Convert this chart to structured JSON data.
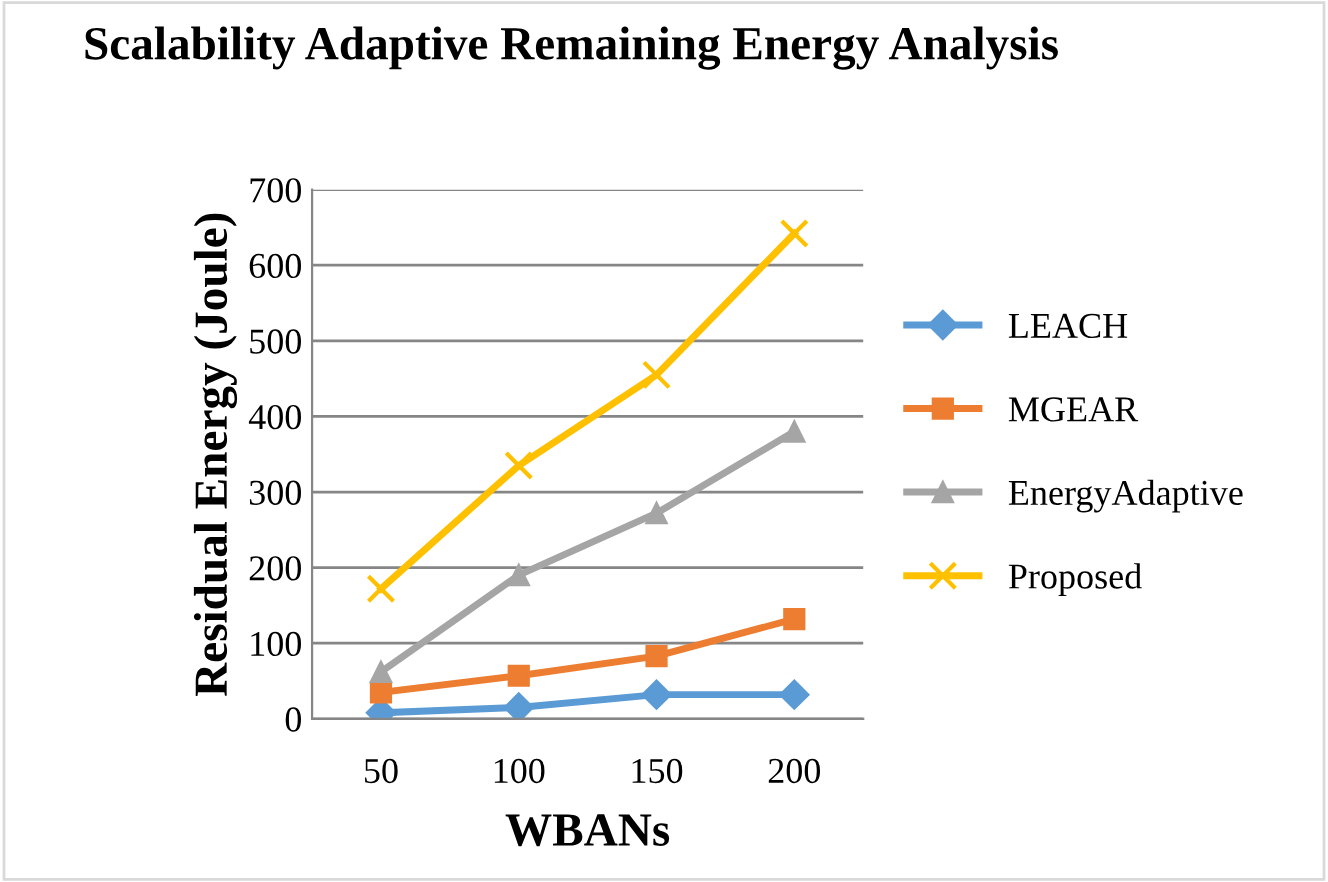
{
  "chart_data": {
    "type": "line",
    "title": "Scalability Adaptive Remaining Energy Analysis",
    "xlabel": "WBANs",
    "ylabel": "Residual Energy (Joule)",
    "categories": [
      "50",
      "100",
      "150",
      "200"
    ],
    "series": [
      {
        "name": "LEACH",
        "color": "#5b9bd5",
        "marker": "diamond",
        "values": [
          8,
          15,
          32,
          32
        ]
      },
      {
        "name": "MGEAR",
        "color": "#ed7d31",
        "marker": "square",
        "values": [
          35,
          57,
          83,
          132
        ]
      },
      {
        "name": "EnergyAdaptive",
        "color": "#a5a5a5",
        "marker": "triangle",
        "values": [
          62,
          190,
          272,
          380
        ]
      },
      {
        "name": "Proposed",
        "color": "#ffc000",
        "marker": "cross",
        "values": [
          172,
          335,
          455,
          642
        ]
      }
    ],
    "ylim": [
      0,
      700
    ],
    "yticks": [
      0,
      100,
      200,
      300,
      400,
      500,
      600,
      700
    ],
    "grid": "y",
    "legend": "right",
    "line_style": "solid"
  }
}
